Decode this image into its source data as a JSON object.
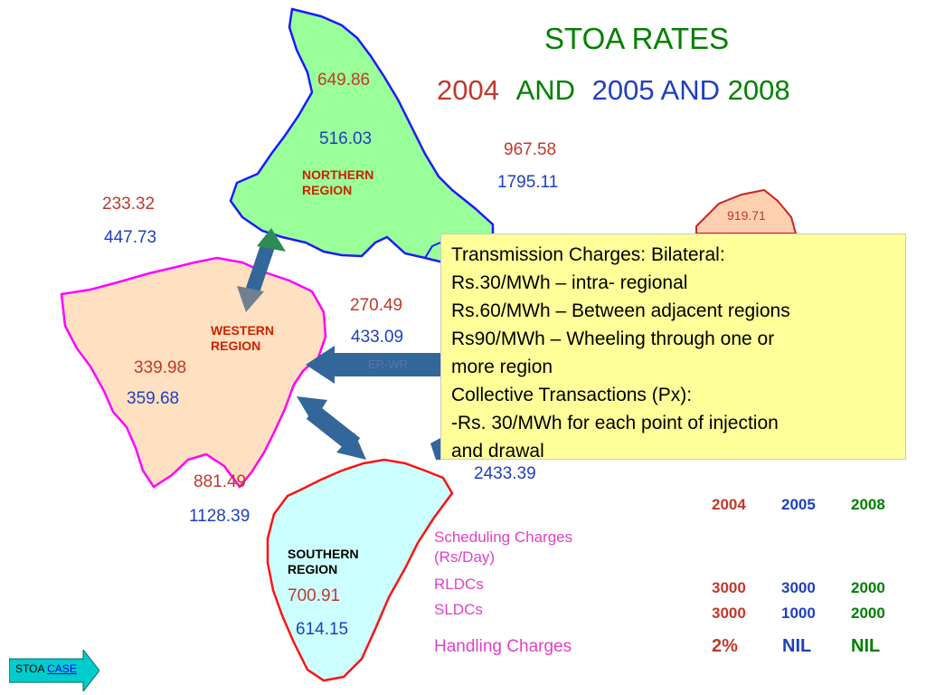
{
  "title": {
    "line1": "STOA  RATES",
    "year1": "2004",
    "and1": "AND",
    "year2": "2005",
    "and2": "AND",
    "year3": "2008"
  },
  "regions": {
    "northern": {
      "label_line1": "NORTHERN",
      "label_line2": "REGION",
      "value_2004": "649.86",
      "value_2005": "516.03"
    },
    "western": {
      "label_line1": "WESTERN",
      "label_line2": "REGION",
      "value_2004": "339.98",
      "value_2005": "359.68"
    },
    "southern": {
      "label_line1": "SOUTHERN",
      "label_line2": "REGION",
      "value_2004": "700.91",
      "value_2005": "614.15"
    },
    "eastern": {
      "value_partial": "919.71"
    }
  },
  "links": {
    "nr_wr": {
      "value_2004": "233.32",
      "value_2005": "447.73"
    },
    "nr_er": {
      "value_2004": "967.58",
      "value_2005": "1795.11"
    },
    "er_wr": {
      "label": "ER-WR",
      "value_2004": "270.49",
      "value_2005": "433.09"
    },
    "wr_sr": {
      "value_2004": "881.49",
      "value_2005": "1128.39"
    },
    "er_sr": {
      "value_2005": "2433.39"
    }
  },
  "transmission_box": {
    "lines": [
      "Transmission Charges: Bilateral:",
      "Rs.30/MWh – intra- regional",
      "Rs.60/MWh – Between adjacent regions",
      "Rs90/MWh – Wheeling through one or",
      "more region",
      "Collective Transactions (Px):",
      "-Rs. 30/MWh for each point of injection",
      "and drawal"
    ]
  },
  "charges_table": {
    "years": [
      "2004",
      "2005",
      "2008"
    ],
    "scheduling_label_line1": "Scheduling Charges",
    "scheduling_label_line2": "(Rs/Day)",
    "rows": [
      {
        "label": "RLDCs",
        "values": [
          "3000",
          "3000",
          "2000"
        ]
      },
      {
        "label": "SLDCs",
        "values": [
          "3000",
          "1000",
          "2000"
        ]
      }
    ],
    "handling": {
      "label": "Handling Charges",
      "values": [
        "2%",
        "NIL",
        "NIL"
      ]
    }
  },
  "nav": {
    "prefix": "STOA",
    "link": "CASE"
  },
  "colors": {
    "title_green": "#008000",
    "value_red": "#c0392b",
    "value_blue": "#1f3fbf",
    "northern_fill": "#99ff99",
    "western_fill": "#ffe0c0",
    "southern_fill": "#ccffff",
    "eastern_fill": "#ffd0b0",
    "info_box": "#ffff99",
    "table_magenta": "#e040c8"
  }
}
